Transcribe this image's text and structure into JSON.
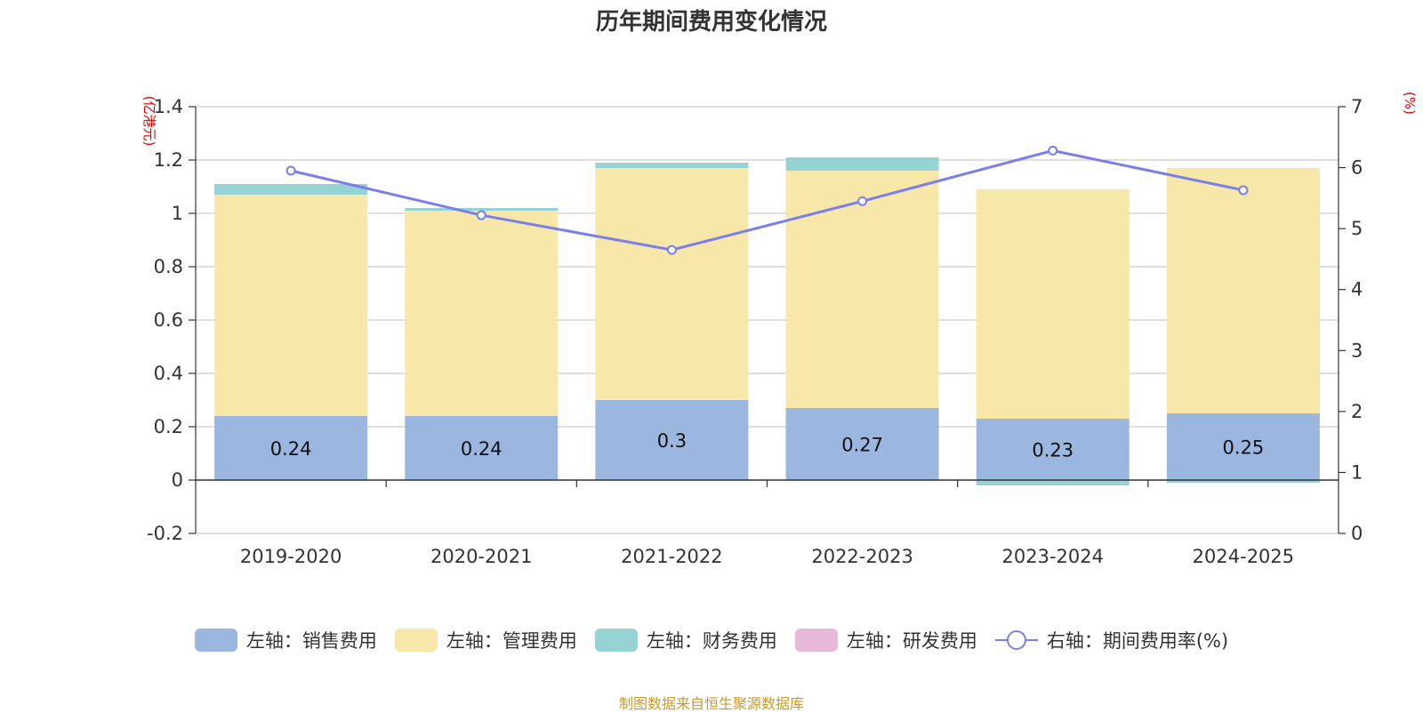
{
  "chart_data": {
    "type": "bar",
    "title": "历年期间费用变化情况",
    "categories": [
      "2019-2020",
      "2020-2021",
      "2021-2022",
      "2022-2023",
      "2023-2024",
      "2024-2025"
    ],
    "series": [
      {
        "name": "左轴：销售费用",
        "axis": "left",
        "type": "bar",
        "stack": "total",
        "color": "#9bb7e0",
        "values": [
          0.24,
          0.24,
          0.3,
          0.27,
          0.23,
          0.25
        ],
        "data_labels": [
          "0.24",
          "0.24",
          "0.3",
          "0.27",
          "0.23",
          "0.25"
        ]
      },
      {
        "name": "左轴：管理费用",
        "axis": "left",
        "type": "bar",
        "stack": "total",
        "color": "#f7e7a9",
        "values": [
          0.83,
          0.77,
          0.87,
          0.89,
          0.86,
          0.92
        ]
      },
      {
        "name": "左轴：财务费用",
        "axis": "left",
        "type": "bar",
        "stack": "total",
        "color": "#96d3d4",
        "values": [
          0.04,
          0.01,
          0.02,
          0.05,
          -0.02,
          -0.01
        ]
      },
      {
        "name": "左轴：研发费用",
        "axis": "left",
        "type": "bar",
        "stack": "total",
        "color": "#e8b8d9",
        "values": [
          0,
          0,
          0,
          0,
          0,
          0
        ]
      },
      {
        "name": "右轴：期间费用率(%)",
        "axis": "right",
        "type": "line",
        "color": "#7b7fea",
        "values": [
          5.95,
          5.22,
          4.65,
          5.45,
          6.28,
          5.63
        ]
      }
    ],
    "y_left": {
      "unit": "(亿港元)",
      "ylim": [
        -0.2,
        1.4
      ],
      "ticks": [
        "-0.2",
        "0",
        "0.2",
        "0.4",
        "0.6",
        "0.8",
        "1",
        "1.2",
        "1.4"
      ],
      "tick_values": [
        -0.2,
        0,
        0.2,
        0.4,
        0.6,
        0.8,
        1,
        1.2,
        1.4
      ]
    },
    "y_right": {
      "unit": "(%)",
      "ylim": [
        0,
        7
      ],
      "ticks": [
        "0",
        "1",
        "2",
        "3",
        "4",
        "5",
        "6",
        "7"
      ],
      "tick_values": [
        0,
        1,
        2,
        3,
        4,
        5,
        6,
        7
      ]
    },
    "grid": true,
    "legend_position": "bottom"
  },
  "source_note": "制图数据来自恒生聚源数据库"
}
